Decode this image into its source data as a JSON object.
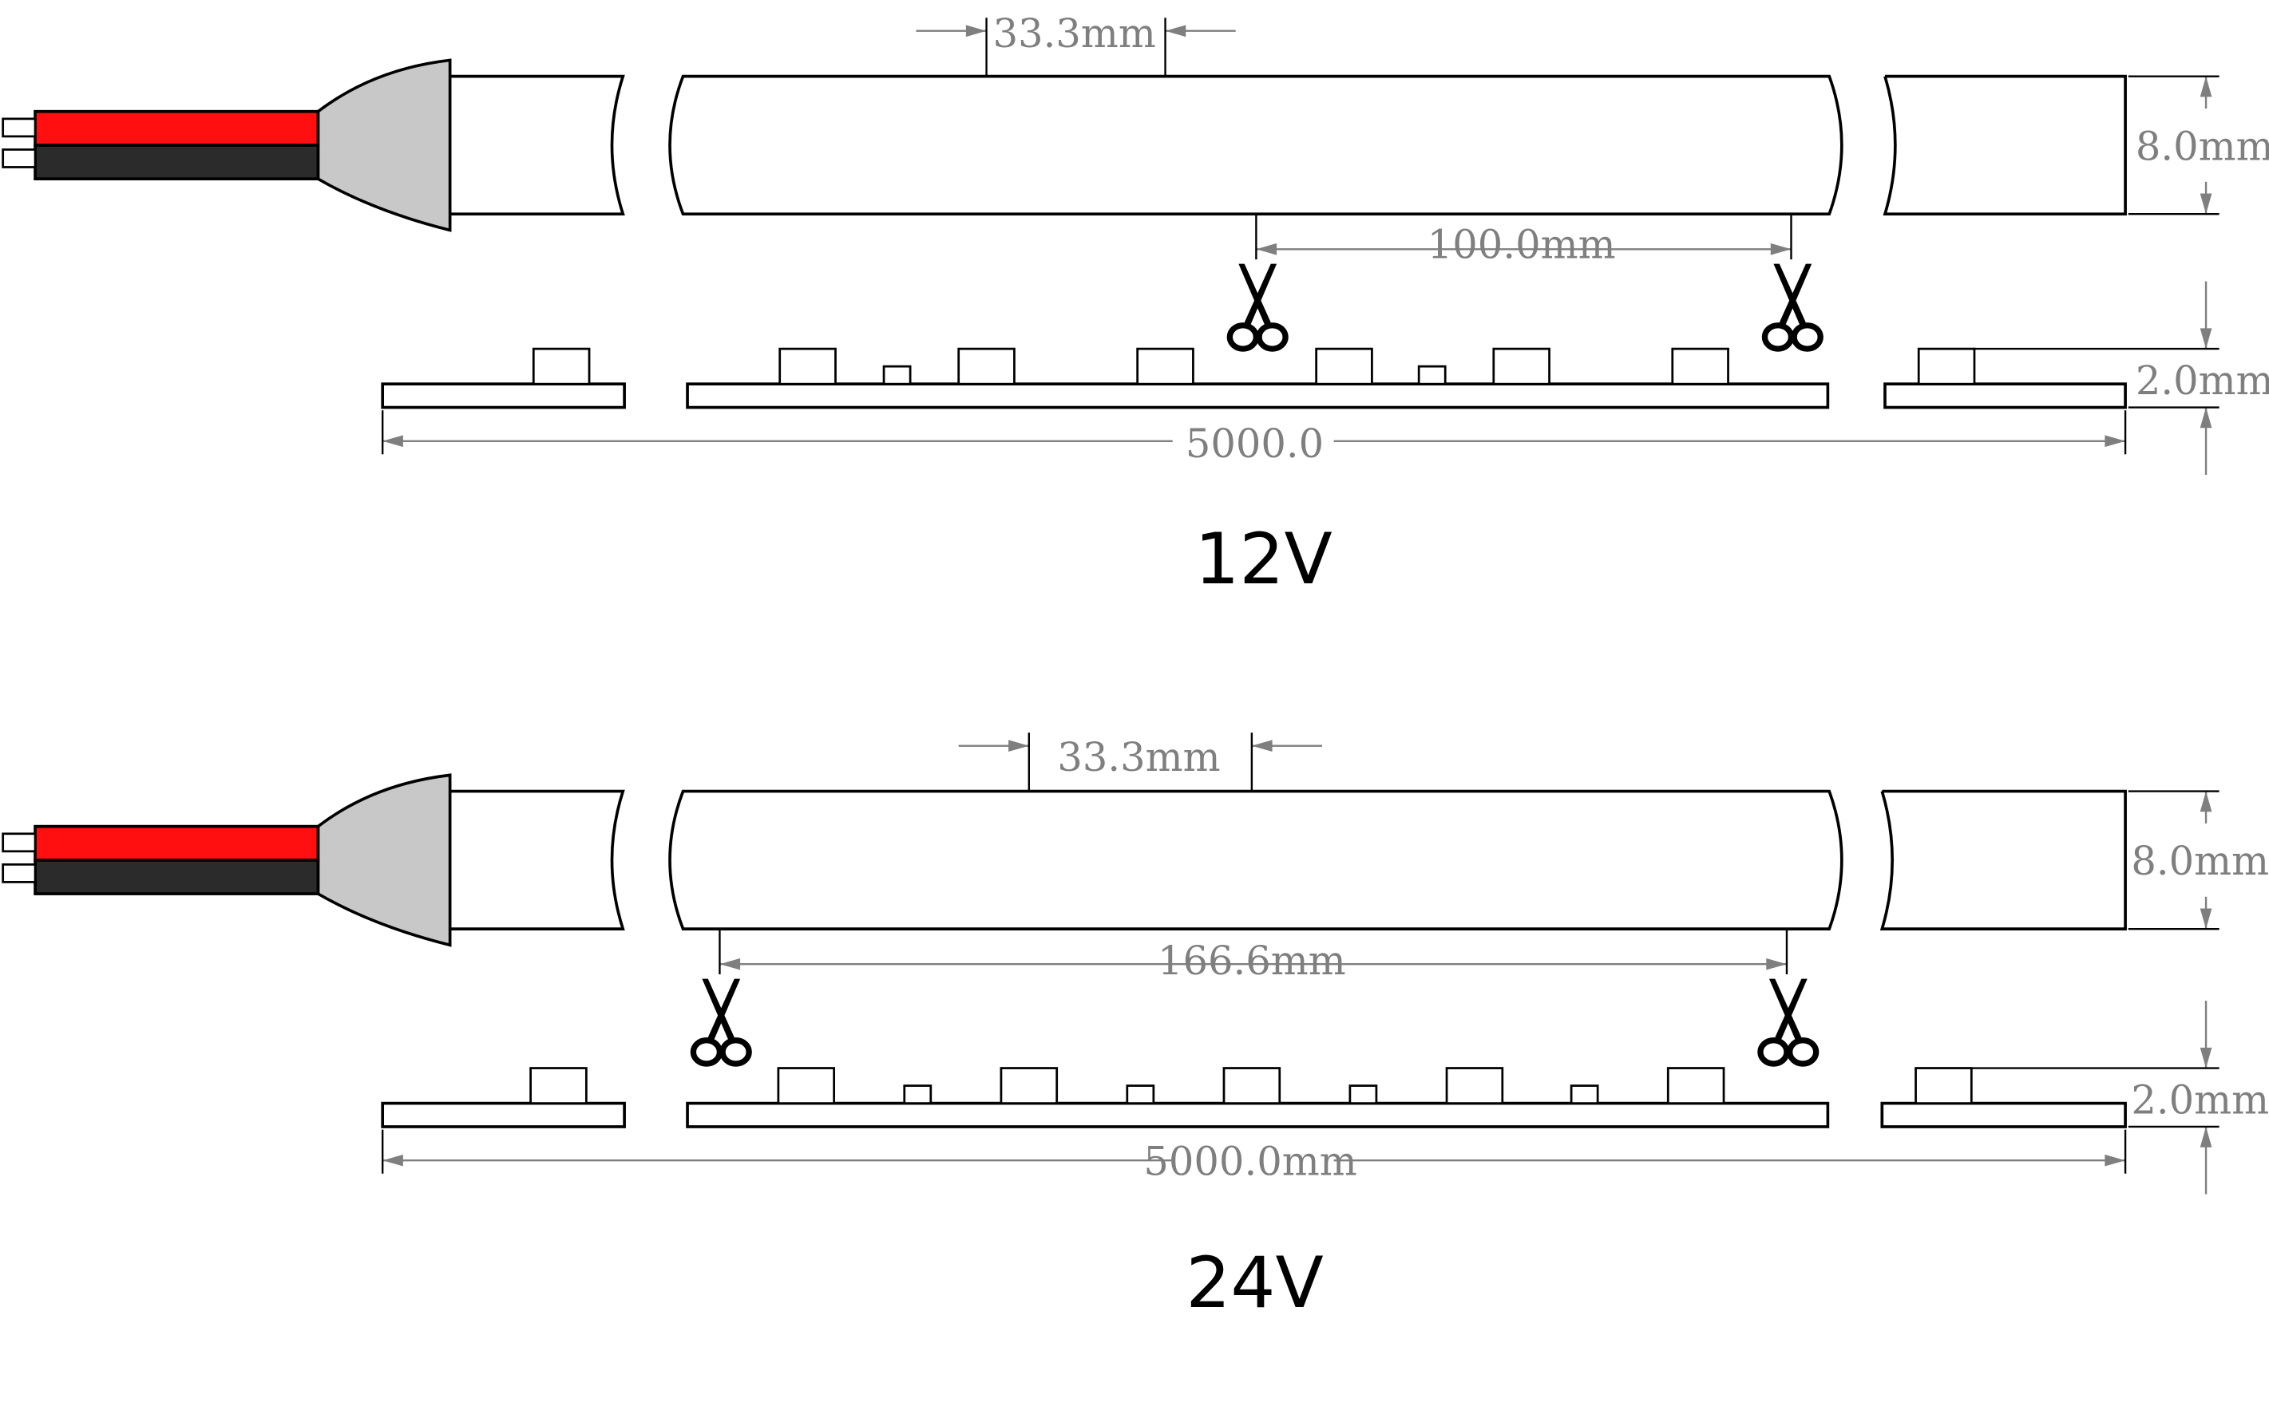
{
  "diagrams": [
    {
      "voltage_label": "12V",
      "led_pitch": "33.3mm",
      "cut_length": "100.0mm",
      "width": "8.0mm",
      "thickness": "2.0mm",
      "total_length": "5000.0"
    },
    {
      "voltage_label": "24V",
      "led_pitch": "33.3mm",
      "cut_length": "166.6mm",
      "width": "8.0mm",
      "thickness": "2.0mm",
      "total_length": "5000.0mm"
    }
  ],
  "colors": {
    "red_wire": "#ff0f0f",
    "black_wire": "#2b2b2b",
    "led": "#ffff00",
    "pad": "#ff8410",
    "connector": "#c8c8c8",
    "dimension": "#7f7f7f"
  },
  "icons": [
    "scissors-icon"
  ]
}
